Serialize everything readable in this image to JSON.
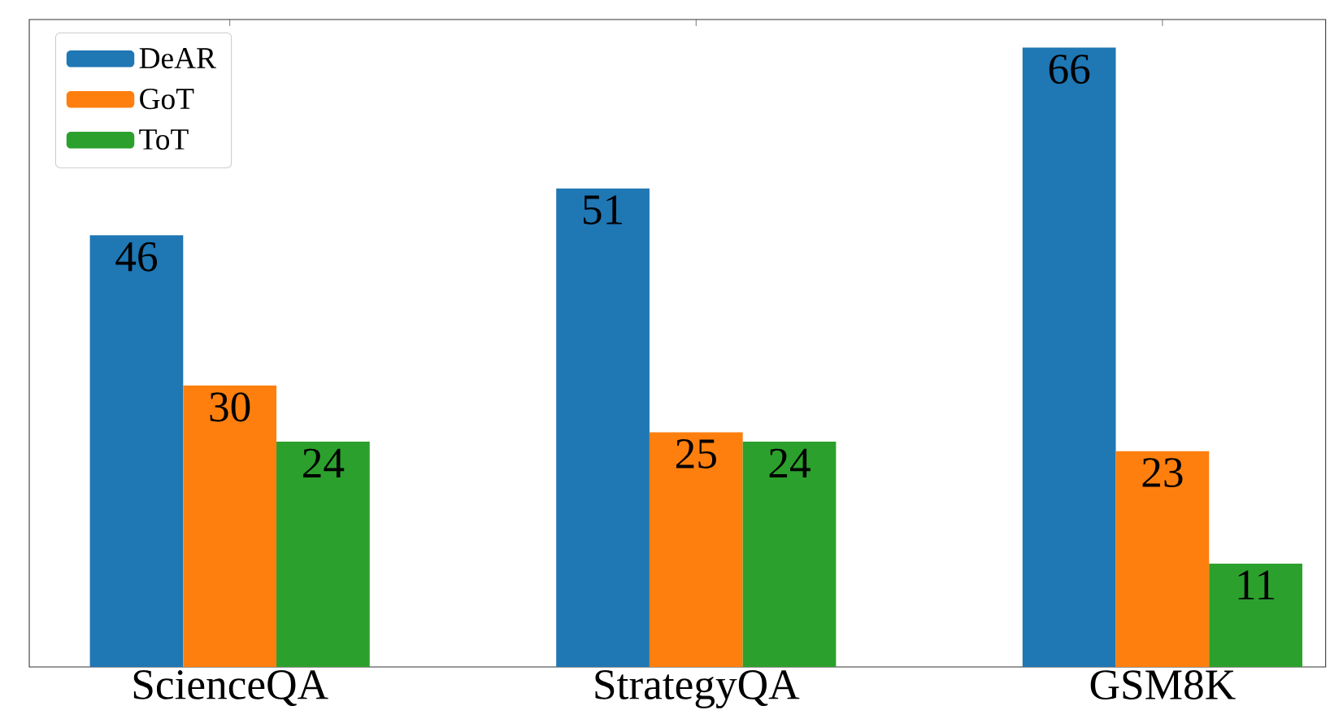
{
  "chart_data": {
    "type": "bar",
    "categories": [
      "ScienceQA",
      "StrategyQA",
      "GSM8K"
    ],
    "series": [
      {
        "name": "DeAR",
        "color": "#1f77b4",
        "values": [
          46,
          51,
          66
        ]
      },
      {
        "name": "GoT",
        "color": "#ff7f0e",
        "values": [
          30,
          25,
          23
        ]
      },
      {
        "name": "ToT",
        "color": "#2ca02c",
        "values": [
          24,
          24,
          11
        ]
      }
    ],
    "ylim": [
      0,
      69
    ],
    "data_labels": true,
    "tick_labels": "x",
    "legend": "top left",
    "grid": false
  }
}
